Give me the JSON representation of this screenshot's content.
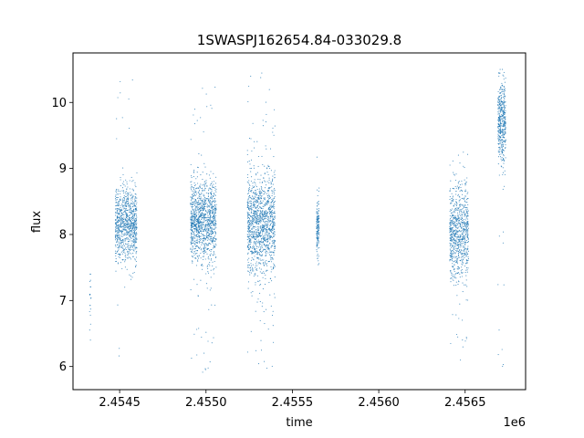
{
  "chart_data": {
    "type": "scatter",
    "title": "1SWASPJ162654.84-033029.8",
    "xlabel": "time",
    "ylabel": "flux",
    "x_offset_label": "1e6",
    "xlim": [
      2454230,
      2456850
    ],
    "ylim": [
      5.65,
      10.75
    ],
    "x_ticks": [
      {
        "value": 2454500,
        "label": "2.4545"
      },
      {
        "value": 2455000,
        "label": "2.4550"
      },
      {
        "value": 2455500,
        "label": "2.4555"
      },
      {
        "value": 2456000,
        "label": "2.4560"
      },
      {
        "value": 2456500,
        "label": "2.4565"
      }
    ],
    "y_ticks": [
      {
        "value": 6,
        "label": "6"
      },
      {
        "value": 7,
        "label": "7"
      },
      {
        "value": 8,
        "label": "8"
      },
      {
        "value": 9,
        "label": "9"
      },
      {
        "value": 10,
        "label": "10"
      }
    ],
    "grid": false,
    "marker_color": "#1f77b4",
    "clusters": [
      {
        "x_range": [
          2454325,
          2454335
        ],
        "y_center": 7.0,
        "y_spread": 0.32,
        "y_min": 6.4,
        "y_max": 7.4,
        "points": 20
      },
      {
        "x_range": [
          2454475,
          2454600
        ],
        "y_center": 8.15,
        "y_spread": 0.28,
        "y_min": 6.0,
        "y_max": 10.45,
        "points": 900
      },
      {
        "x_range": [
          2454910,
          2455060
        ],
        "y_center": 8.2,
        "y_spread": 0.3,
        "y_min": 5.9,
        "y_max": 10.35,
        "points": 1200
      },
      {
        "x_range": [
          2455240,
          2455400
        ],
        "y_center": 8.15,
        "y_spread": 0.38,
        "y_min": 5.9,
        "y_max": 10.5,
        "points": 1300
      },
      {
        "x_range": [
          2455640,
          2455655
        ],
        "y_center": 8.1,
        "y_spread": 0.22,
        "y_min": 7.05,
        "y_max": 9.4,
        "points": 150
      },
      {
        "x_range": [
          2456410,
          2456520
        ],
        "y_center": 8.05,
        "y_spread": 0.35,
        "y_min": 6.05,
        "y_max": 9.3,
        "points": 800
      },
      {
        "x_range": [
          2456690,
          2456735
        ],
        "y_center": 9.7,
        "y_spread": 0.3,
        "y_min": 5.95,
        "y_max": 10.5,
        "points": 450
      }
    ]
  }
}
